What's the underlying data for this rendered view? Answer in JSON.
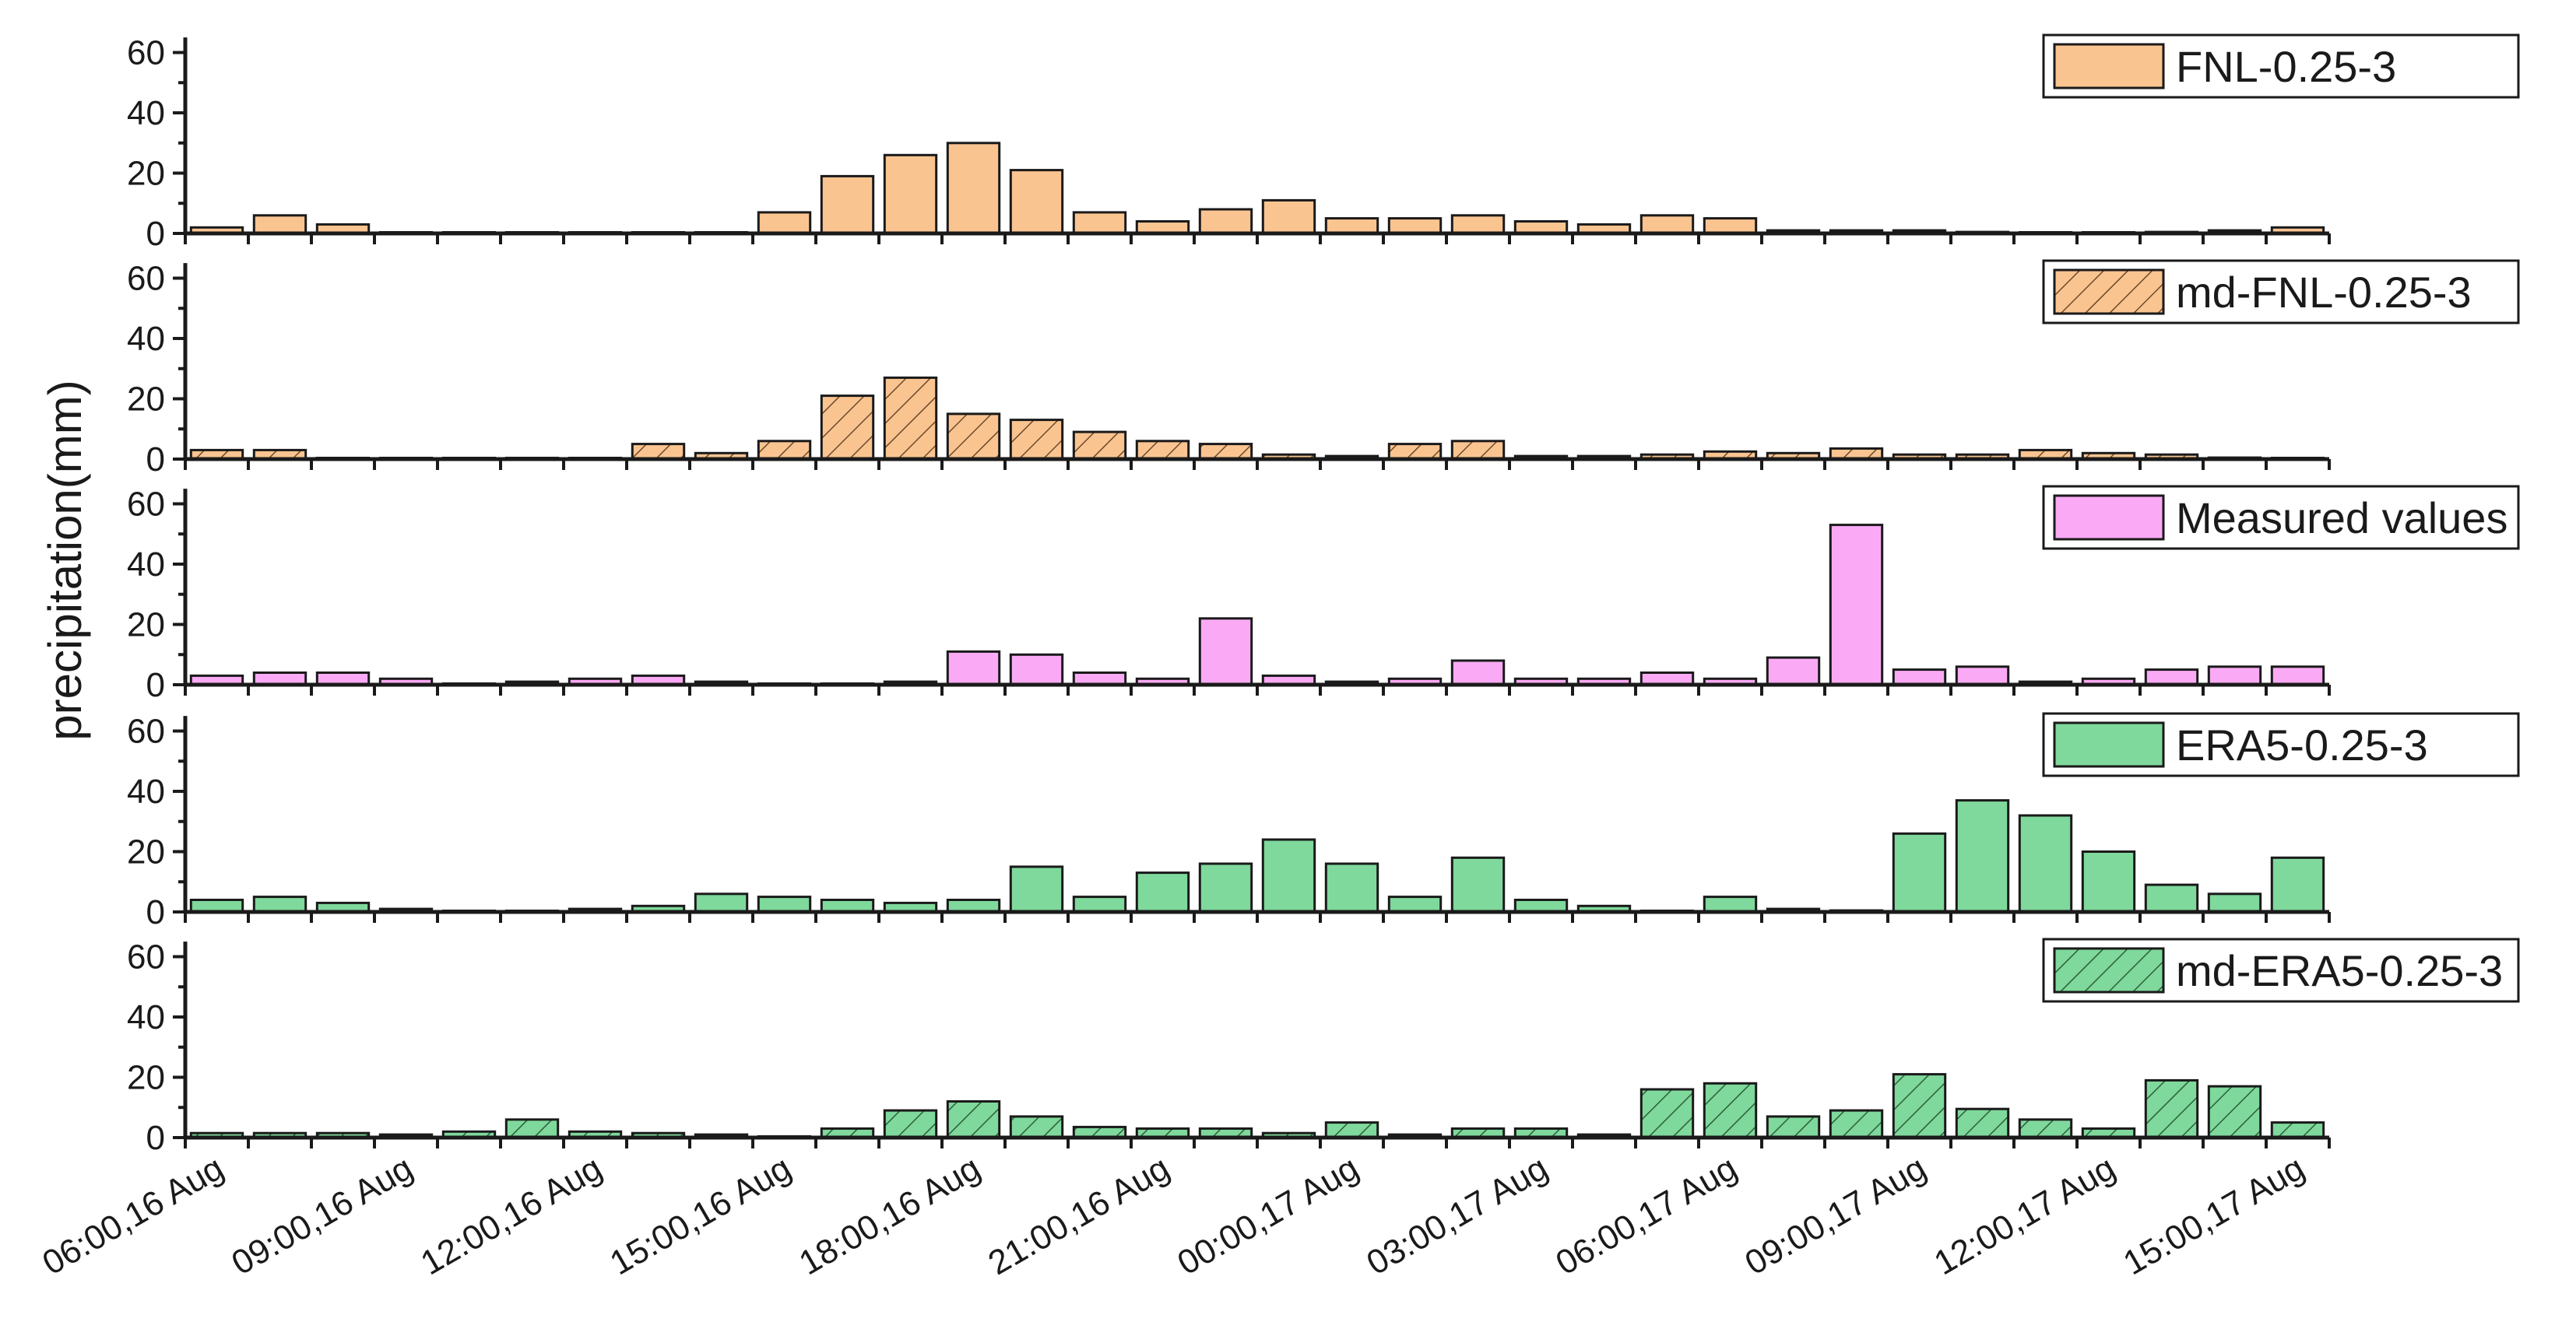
{
  "chart_data": {
    "type": "bar",
    "ylabel": "precipitation(mm)",
    "ylim": [
      0,
      65
    ],
    "yticks": [
      0,
      20,
      40,
      60
    ],
    "ytick_labels": [
      "0",
      "20",
      "40",
      "60"
    ],
    "x_tick_labels": [
      "06:00,16 Aug",
      "09:00,16 Aug",
      "12:00,16 Aug",
      "15:00,16 Aug",
      "18:00,16 Aug",
      "21:00,16 Aug",
      "00:00,17 Aug",
      "03:00,17 Aug",
      "06:00,17 Aug",
      "09:00,17 Aug",
      "12:00,17 Aug",
      "15:00,17 Aug"
    ],
    "x_tick_bar_index": [
      0,
      3,
      6,
      9,
      12,
      15,
      18,
      21,
      24,
      27,
      30,
      33
    ],
    "legend_position": "top-right",
    "series": [
      {
        "name": "FNL-0.25-3",
        "color": "#FAC491",
        "hatch": false,
        "values": [
          2,
          6,
          3,
          0,
          0,
          0,
          0,
          0,
          0,
          7,
          19,
          26,
          30,
          21,
          7,
          4,
          8,
          11,
          5,
          5,
          6,
          4,
          3,
          6,
          5,
          1,
          1,
          1,
          0.5,
          0.3,
          0,
          0.5,
          1,
          2
        ]
      },
      {
        "name": "md-FNL-0.25-3",
        "color": "#FAC491",
        "hatch": true,
        "values": [
          3,
          3,
          0.3,
          0,
          0,
          0.3,
          0.3,
          5,
          2,
          6,
          21,
          27,
          15,
          13,
          9,
          6,
          5,
          1.5,
          1,
          5,
          6,
          1,
          1,
          1.5,
          2.5,
          2,
          3.5,
          1.5,
          1.5,
          3,
          2,
          1.5,
          0.5,
          0
        ]
      },
      {
        "name": "Measured values",
        "color": "#FAAAF5",
        "hatch": false,
        "values": [
          3,
          4,
          4,
          2,
          0,
          1,
          2,
          3,
          1,
          0,
          0,
          1,
          11,
          10,
          4,
          2,
          22,
          3,
          1,
          2,
          8,
          2,
          2,
          4,
          2,
          9,
          53,
          5,
          6,
          1,
          2,
          5,
          6,
          6
        ]
      },
      {
        "name": "ERA5-0.25-3",
        "color": "#7FD89C",
        "hatch": false,
        "values": [
          4,
          5,
          3,
          1,
          0,
          0,
          1,
          2,
          6,
          5,
          4,
          3,
          4,
          15,
          5,
          13,
          16,
          24,
          16,
          5,
          18,
          4,
          2,
          0,
          5,
          1,
          0.5,
          26,
          37,
          32,
          20,
          9,
          6,
          18
        ]
      },
      {
        "name": "md-ERA5-0.25-3",
        "color": "#7FD89C",
        "hatch": true,
        "values": [
          1.5,
          1.5,
          1.5,
          1,
          2,
          6,
          2,
          1.5,
          1,
          0.3,
          3,
          9,
          12,
          7,
          3.5,
          3,
          3,
          1.5,
          5,
          1,
          3,
          3,
          1,
          16,
          18,
          7,
          9,
          21,
          9.5,
          6,
          3,
          19,
          17,
          5
        ]
      }
    ]
  }
}
